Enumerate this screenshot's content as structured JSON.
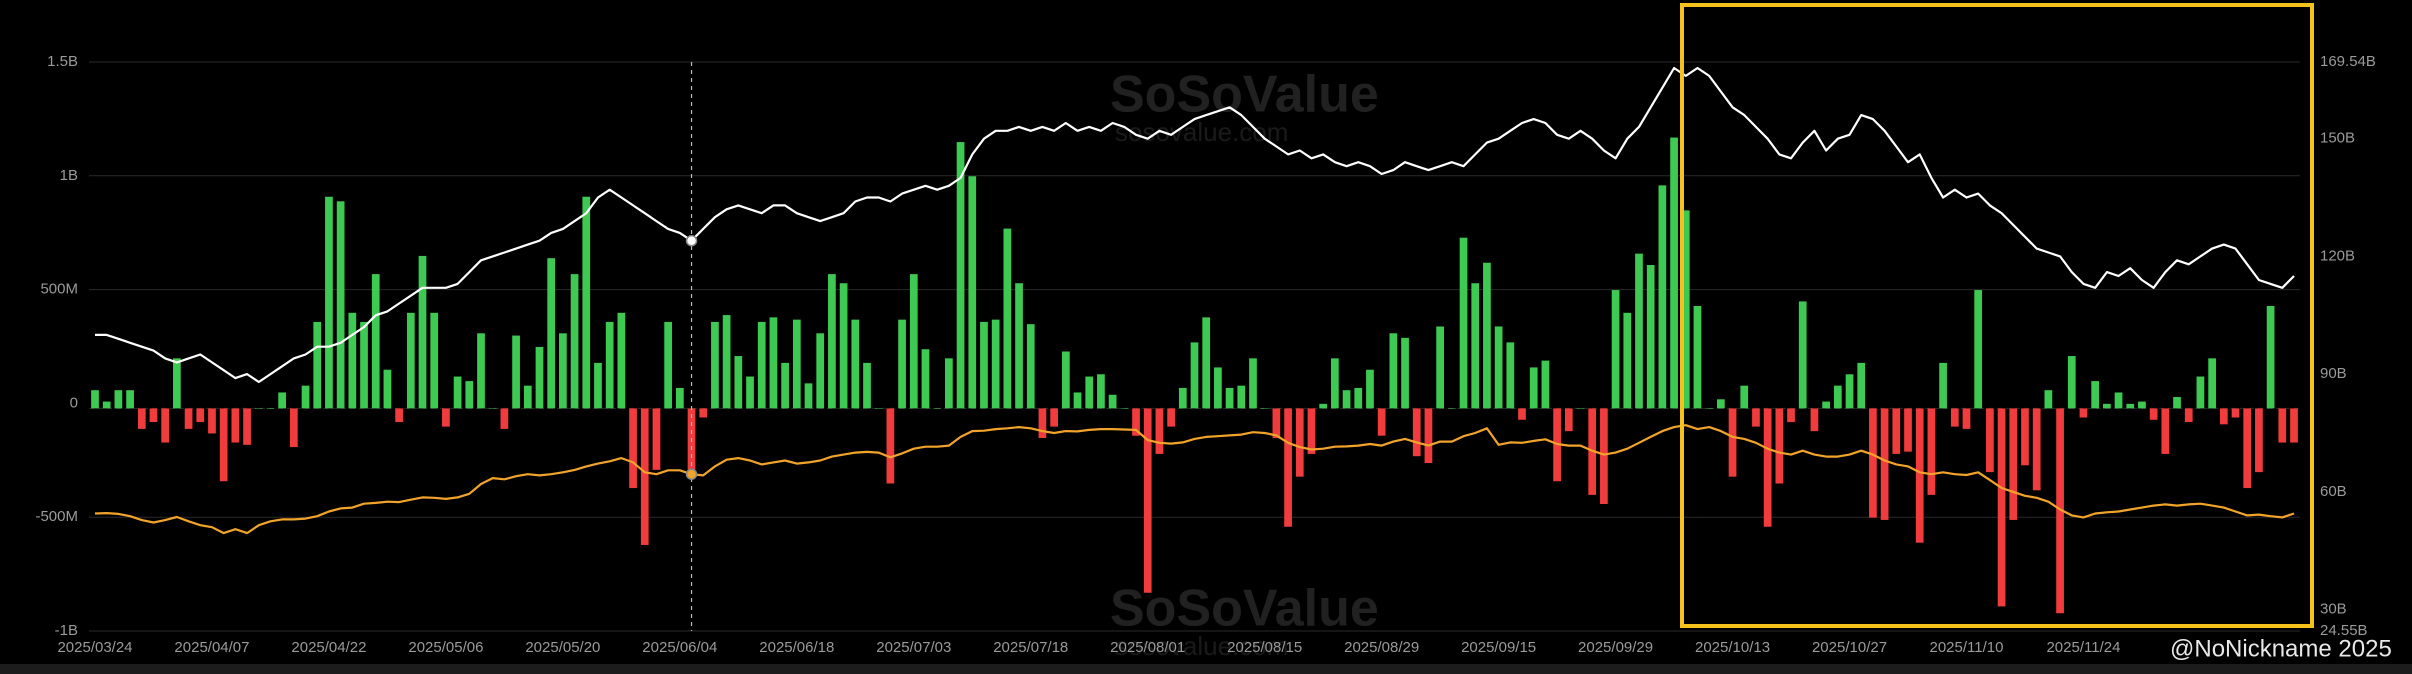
{
  "chart_data": {
    "type": "bar",
    "watermark": "SoSoValue",
    "watermark_url": "sosovalue.com",
    "credit": "@NoNickname 2025",
    "categories": [
      "2025/03/24",
      null,
      null,
      null,
      null,
      null,
      null,
      null,
      null,
      null,
      "2025/04/07",
      null,
      null,
      null,
      null,
      null,
      null,
      null,
      null,
      null,
      "2025/04/22",
      null,
      null,
      null,
      null,
      null,
      null,
      null,
      null,
      null,
      "2025/05/06",
      null,
      null,
      null,
      null,
      null,
      null,
      null,
      null,
      null,
      "2025/05/20",
      null,
      null,
      null,
      null,
      null,
      null,
      null,
      null,
      null,
      "2025/06/04",
      null,
      null,
      null,
      null,
      null,
      null,
      null,
      null,
      null,
      "2025/06/18",
      null,
      null,
      null,
      null,
      null,
      null,
      null,
      null,
      null,
      "2025/07/03",
      null,
      null,
      null,
      null,
      null,
      null,
      null,
      null,
      null,
      "2025/07/18",
      null,
      null,
      null,
      null,
      null,
      null,
      null,
      null,
      null,
      "2025/08/01",
      null,
      null,
      null,
      null,
      null,
      null,
      null,
      null,
      null,
      "2025/08/15",
      null,
      null,
      null,
      null,
      null,
      null,
      null,
      null,
      null,
      "2025/08/29",
      null,
      null,
      null,
      null,
      null,
      null,
      null,
      null,
      null,
      "2025/09/15",
      null,
      null,
      null,
      null,
      null,
      null,
      null,
      null,
      null,
      "2025/09/29",
      null,
      null,
      null,
      null,
      null,
      null,
      null,
      null,
      null,
      "2025/10/13",
      null,
      null,
      null,
      null,
      null,
      null,
      null,
      null,
      null,
      "2025/10/27",
      null,
      null,
      null,
      null,
      null,
      null,
      null,
      null,
      null,
      "2025/11/10",
      null,
      null,
      null,
      null,
      null,
      null,
      null,
      null,
      null,
      "2025/11/24",
      null,
      null,
      null,
      null,
      null,
      null,
      null,
      null,
      null,
      null,
      null,
      null,
      null,
      null,
      null,
      null,
      null,
      null
    ],
    "ylim": [
      -1000,
      1500
    ],
    "yticks": [
      {
        "value": -1000,
        "label": "-1B"
      },
      {
        "value": -500,
        "label": "-500M"
      },
      0,
      {
        "value": 500,
        "label": "500M"
      },
      {
        "value": 1000,
        "label": "1B"
      },
      {
        "value": 1500,
        "label": "1.5B"
      }
    ],
    "y2lim": [
      24.55,
      169.54
    ],
    "y2ticks": [
      {
        "value": 24.55,
        "label": "24.55B"
      },
      {
        "value": 30,
        "label": "30B"
      },
      {
        "value": 60,
        "label": "60B"
      },
      {
        "value": 90,
        "label": "90B"
      },
      {
        "value": 120,
        "label": "120B"
      },
      {
        "value": 150,
        "label": "150B"
      },
      {
        "value": 169.54,
        "label": "169.54B"
      }
    ],
    "grid": true,
    "series": [
      {
        "type": "bar",
        "color_positive": "#3ec952",
        "color_negative": "#f03c3c",
        "values": [
          80,
          30,
          80,
          80,
          -90,
          -60,
          -150,
          220,
          -90,
          -60,
          -110,
          -320,
          -150,
          -160,
          0,
          0,
          70,
          -170,
          100,
          380,
          930,
          910,
          420,
          380,
          590,
          170,
          -60,
          420,
          670,
          420,
          -80,
          140,
          120,
          330,
          0,
          -90,
          320,
          100,
          270,
          660,
          330,
          590,
          930,
          200,
          380,
          420,
          -350,
          -600,
          -270,
          380,
          90,
          -270,
          -40,
          380,
          410,
          230,
          140,
          380,
          400,
          200,
          390,
          110,
          330,
          590,
          550,
          390,
          200,
          0,
          -330,
          390,
          590,
          260,
          0,
          220,
          1170,
          1020,
          380,
          390,
          790,
          550,
          370,
          -130,
          -80,
          250,
          70,
          140,
          150,
          60,
          0,
          -120,
          -810,
          -200,
          -80,
          90,
          290,
          400,
          180,
          90,
          100,
          220,
          0,
          -130,
          -520,
          -300,
          -200,
          20,
          220,
          80,
          90,
          170,
          -120,
          330,
          310,
          -210,
          -240,
          360,
          0,
          750,
          550,
          640,
          360,
          290,
          -50,
          180,
          210,
          -320,
          -100,
          0,
          -380,
          -420,
          520,
          420,
          680,
          630,
          980,
          1190,
          870,
          450,
          0,
          40,
          -300,
          100,
          -80,
          -520,
          -330,
          -60,
          470,
          -100,
          30,
          100,
          150,
          200,
          -480,
          -490,
          -200,
          -190,
          -590,
          -380,
          200,
          -80,
          -90,
          520,
          -280,
          -870,
          -490,
          -250,
          -360,
          80,
          -900,
          230,
          -40,
          120,
          20,
          70,
          20,
          30,
          -50,
          -200,
          50,
          -60,
          140,
          220,
          -70,
          -40,
          -350,
          -280,
          450,
          -150,
          -150
        ]
      },
      {
        "type": "line",
        "axis": "y2",
        "color": "#ffffff",
        "values": [
          100,
          100,
          99,
          98,
          97,
          96,
          94,
          93,
          94,
          95,
          93,
          91,
          89,
          90,
          88,
          90,
          92,
          94,
          95,
          97,
          97,
          98,
          100,
          102,
          105,
          106,
          108,
          110,
          112,
          112,
          112,
          113,
          116,
          119,
          120,
          121,
          122,
          123,
          124,
          126,
          127,
          129,
          131,
          135,
          137,
          135,
          133,
          131,
          129,
          127,
          126,
          124,
          127,
          130,
          132,
          133,
          132,
          131,
          133,
          133,
          131,
          130,
          129,
          130,
          131,
          134,
          135,
          135,
          134,
          136,
          137,
          138,
          137,
          138,
          140,
          146,
          150,
          152,
          152,
          153,
          152,
          153,
          152,
          154,
          152,
          153,
          152,
          154,
          153,
          151,
          150,
          152,
          151,
          153,
          155,
          156,
          157,
          158,
          156,
          153,
          150,
          148,
          146,
          147,
          145,
          146,
          144,
          143,
          144,
          143,
          141,
          142,
          144,
          143,
          142,
          143,
          144,
          143,
          146,
          149,
          150,
          152,
          154,
          155,
          154,
          151,
          150,
          152,
          150,
          147,
          145,
          150,
          153,
          158,
          163,
          168,
          166,
          168,
          166,
          162,
          158,
          156,
          153,
          150,
          146,
          145,
          149,
          152,
          147,
          150,
          151,
          156,
          155,
          152,
          148,
          144,
          146,
          140,
          135,
          137,
          135,
          136,
          133,
          131,
          128,
          125,
          122,
          121,
          120,
          116,
          113,
          112,
          116,
          115,
          117,
          114,
          112,
          116,
          119,
          118,
          120,
          122,
          123,
          122,
          118,
          114,
          113,
          112,
          115
        ]
      },
      {
        "type": "line",
        "axis": "y2",
        "color": "#f2a42a",
        "values": [
          54.5,
          54.6,
          54.4,
          53.8,
          52.8,
          52.2,
          52.8,
          53.6,
          52.5,
          51.5,
          51,
          49.5,
          50.5,
          49.5,
          51.5,
          52.5,
          53,
          53,
          53.2,
          53.8,
          55,
          55.8,
          56,
          57,
          57.2,
          57.5,
          57.4,
          58,
          58.6,
          58.5,
          58.2,
          58.6,
          59.5,
          62,
          63.5,
          63.2,
          64,
          64.5,
          64.2,
          64.5,
          65,
          65.6,
          66.5,
          67.2,
          67.8,
          68.6,
          67.5,
          65,
          64.5,
          65.5,
          65.5,
          64.5,
          64.2,
          66.5,
          68.2,
          68.6,
          68,
          67,
          67.5,
          68,
          67.2,
          67.5,
          68,
          69,
          69.5,
          70,
          70.2,
          70,
          68.8,
          69.8,
          71,
          71.5,
          71.5,
          71.8,
          74,
          75.5,
          75.6,
          76,
          76.2,
          76.5,
          76.2,
          75.5,
          75,
          75.5,
          75.4,
          75.8,
          76,
          76,
          75.9,
          75.8,
          73.2,
          72.5,
          72.3,
          72.6,
          73.5,
          74,
          74.2,
          74.4,
          74.6,
          75.2,
          75,
          74.4,
          72.5,
          71.4,
          70.8,
          71,
          71.5,
          71.6,
          71.8,
          72.2,
          71.8,
          72.8,
          73.5,
          72.6,
          71.8,
          72.8,
          72.8,
          74.2,
          75,
          76.2,
          72,
          72.6,
          72.5,
          73,
          73.4,
          72.2,
          71.8,
          71.8,
          70.5,
          69.5,
          70,
          71,
          72.5,
          74,
          75.5,
          76.5,
          77,
          76,
          76.5,
          75.5,
          74,
          73.5,
          72.5,
          71,
          70,
          69.5,
          70.5,
          69.5,
          69,
          69,
          69.5,
          70.5,
          69.5,
          68,
          67,
          66.5,
          65,
          64.5,
          65,
          64.5,
          64.3,
          65,
          63,
          61,
          60,
          59,
          58.5,
          57.5,
          55.5,
          54,
          53.5,
          54.5,
          54.8,
          55,
          55.5,
          56,
          56.5,
          56.8,
          56.5,
          56.8,
          57,
          56.5,
          56,
          55,
          54,
          54.2,
          53.8,
          53.5,
          54.5
        ]
      }
    ]
  }
}
